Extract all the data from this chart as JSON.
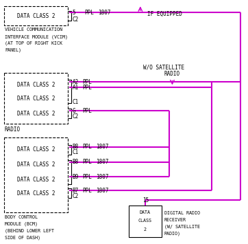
{
  "bg_color": "#ffffff",
  "line_color": "#cc00cc",
  "text_color": "#000000",
  "box_color": "#000000",
  "font_size": 6.0,
  "small_font": 5.5,
  "vcim_label": "DATA CLASS 2",
  "vcim_text_lines": [
    "VEHICLE COMMUNICATION",
    "INTERFACE MODULE (VCIM)",
    "(AT TOP OF RIGHT KICK",
    "PANEL)"
  ],
  "vcim_pin5": "5",
  "vcim_pinC2": "C2",
  "radio_labels": [
    "DATA CLASS 2",
    "DATA CLASS 2",
    "DATA CLASS 2"
  ],
  "radio_pinA2": "A2",
  "radio_pinA1": "A1",
  "radio_pinC1": "C1",
  "radio_pinG": "G",
  "radio_pinC2": "C2",
  "radio_text": "RADIO",
  "bcm_labels": [
    "DATA CLASS 2",
    "DATA CLASS 2",
    "DATA CLASS 2",
    "DATA CLASS 2"
  ],
  "bcm_pinB8a": "B8",
  "bcm_pinC1": "C1",
  "bcm_pinB8b": "B8",
  "bcm_pinB9": "B9",
  "bcm_pinB7": "B7",
  "bcm_pinC2b": "C2",
  "bcm_text_lines": [
    "BODY CONTROL",
    "MODULE (BCM)",
    "(BEHIND LOWER LEFT",
    "SIDE OF DASH)"
  ],
  "drc_label_lines": [
    "DATA",
    "CLASS",
    "2"
  ],
  "drc_text_lines": [
    "DIGITAL RADIO",
    "RECEIVER",
    "(W/ SATELLITE",
    "RADIO)"
  ],
  "drc_pin15": "15",
  "if_equipped_text": "IF EQUIPPED",
  "wo_satellite_lines": [
    "W/O SATELLITE",
    "RADIO"
  ],
  "ppl_text": "PPL",
  "num_1807": "1807"
}
